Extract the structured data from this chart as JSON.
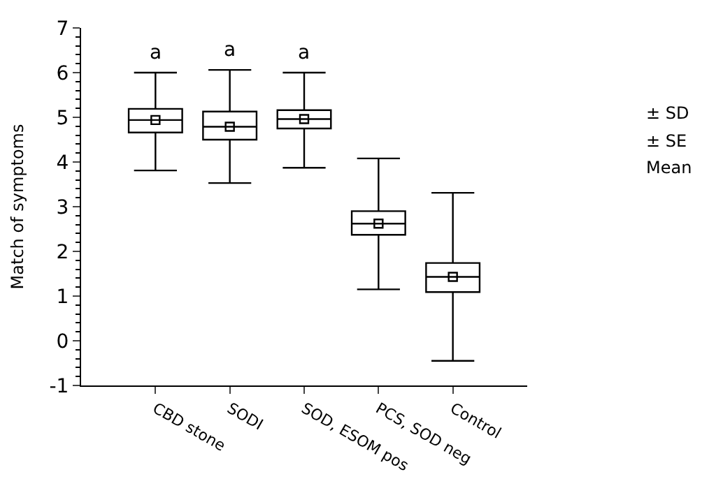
{
  "chart_data": {
    "type": "box",
    "ylabel": "Match of symptoms",
    "categories": [
      "CBD stone",
      "SODI",
      "SOD, ESOM pos",
      "PCS, SOD neg",
      "Control"
    ],
    "boxes": [
      {
        "low": 3.81,
        "q1": 4.66,
        "median": 4.94,
        "q3": 5.19,
        "high": 6.0,
        "mean": 4.94
      },
      {
        "low": 3.53,
        "q1": 4.5,
        "median": 4.79,
        "q3": 5.13,
        "high": 6.06,
        "mean": 4.79
      },
      {
        "low": 3.87,
        "q1": 4.75,
        "median": 4.96,
        "q3": 5.16,
        "high": 6.0,
        "mean": 4.96
      },
      {
        "low": 1.15,
        "q1": 2.37,
        "median": 2.62,
        "q3": 2.9,
        "high": 4.08,
        "mean": 2.62
      },
      {
        "low": -0.45,
        "q1": 1.09,
        "median": 1.43,
        "q3": 1.74,
        "high": 3.31,
        "mean": 1.43
      }
    ],
    "color": "#000000",
    "ylim": [
      -1,
      7
    ],
    "yticks": [
      -1,
      0,
      1,
      2,
      3,
      4,
      5,
      6,
      7
    ],
    "marker": "square",
    "annotations": [
      "a",
      "a",
      "a",
      "± SD",
      "± SE",
      "Mean"
    ]
  }
}
